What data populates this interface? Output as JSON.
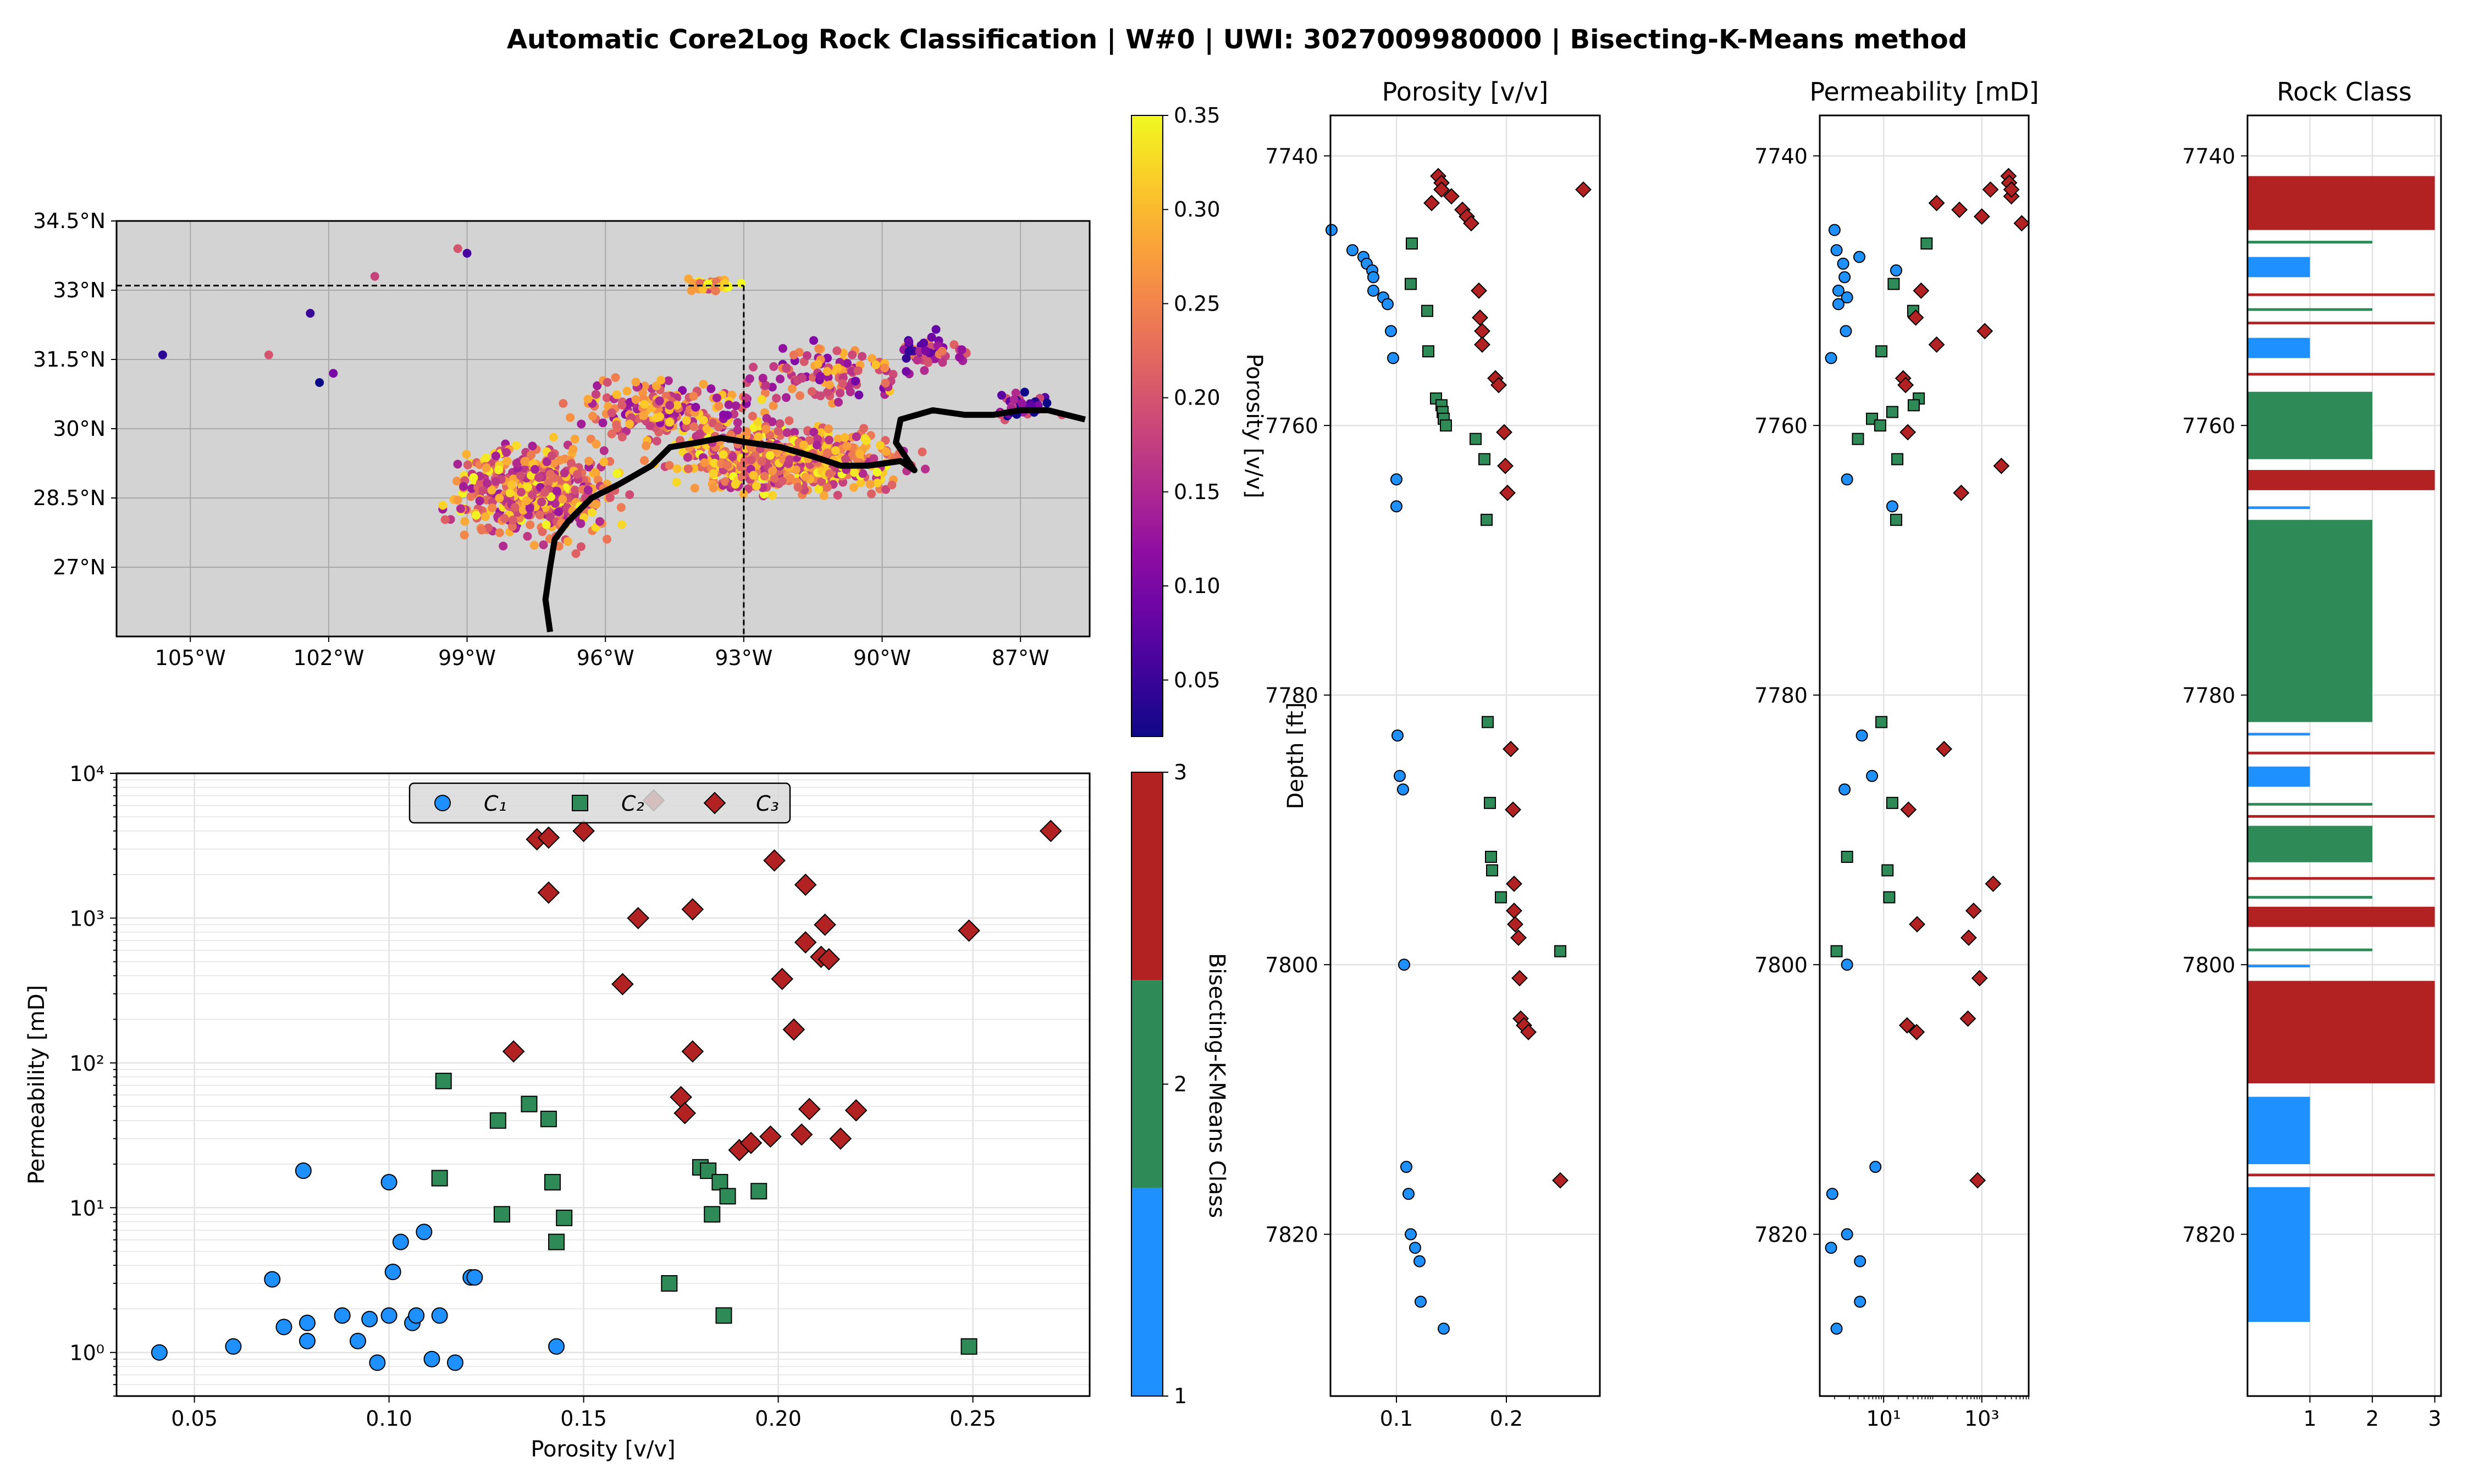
{
  "figure": {
    "title": "Automatic Core2Log Rock Classification | W#0 | UWI: 3027009980000 | Bisecting-K-Means method"
  },
  "colors": {
    "c1": "#1e90ff",
    "c2": "#2e8b57",
    "c3": "#b22222",
    "map_bg": "#d3d3d3",
    "coast": "#000000"
  },
  "chart_data": [
    {
      "id": "map",
      "type": "scatter",
      "description_of_data": "well locations colored by porosity",
      "xlabel": "",
      "ylabel": "",
      "xticks": [
        "105°W",
        "102°W",
        "99°W",
        "96°W",
        "93°W",
        "90°W",
        "87°W"
      ],
      "xtick_values": [
        -105,
        -102,
        -99,
        -96,
        -93,
        -90,
        -87
      ],
      "yticks": [
        "34.5°N",
        "33°N",
        "31.5°N",
        "30°N",
        "28.5°N",
        "27°N"
      ],
      "ytick_values": [
        34.5,
        33,
        31.5,
        30,
        28.5,
        27
      ],
      "xlim": [
        -106.6,
        -85.5
      ],
      "ylim": [
        25.5,
        34.5
      ],
      "grid": true,
      "marker_lines": {
        "lat": 33.1,
        "lon": -93.0
      },
      "colorbar": {
        "label": "Porosity [v/v]",
        "ticks": [
          "0.05",
          "0.10",
          "0.15",
          "0.20",
          "0.25",
          "0.30",
          "0.35"
        ],
        "tick_values": [
          0.05,
          0.1,
          0.15,
          0.2,
          0.25,
          0.3,
          0.35
        ],
        "range": [
          0.02,
          0.35
        ],
        "colormap": "plasma"
      }
    },
    {
      "id": "crossplot",
      "type": "scatter",
      "xlabel": "Porosity [v/v]",
      "ylabel": "Permeability [mD]",
      "xlim": [
        0.03,
        0.28
      ],
      "ylim": [
        0.5,
        10000
      ],
      "yscale": "log",
      "xticks": [
        "0.05",
        "0.10",
        "0.15",
        "0.20",
        "0.25"
      ],
      "xtick_values": [
        0.05,
        0.1,
        0.15,
        0.2,
        0.25
      ],
      "yticks": [
        "10⁰",
        "10¹",
        "10²",
        "10³",
        "10⁴"
      ],
      "ytick_values": [
        1,
        10,
        100,
        1000,
        10000
      ],
      "grid": true,
      "legend": {
        "position": "top-center",
        "entries": [
          "C₁",
          "C₂",
          "C₃"
        ]
      },
      "series": [
        {
          "name": "C₁",
          "points": [
            [
              0.041,
              1.0
            ],
            [
              0.06,
              1.1
            ],
            [
              0.07,
              3.2
            ],
            [
              0.073,
              1.5
            ],
            [
              0.078,
              18
            ],
            [
              0.079,
              1.6
            ],
            [
              0.079,
              1.2
            ],
            [
              0.088,
              1.8
            ],
            [
              0.092,
              1.2
            ],
            [
              0.095,
              1.7
            ],
            [
              0.097,
              0.85
            ],
            [
              0.1,
              1.8
            ],
            [
              0.1,
              15
            ],
            [
              0.101,
              3.6
            ],
            [
              0.103,
              5.8
            ],
            [
              0.106,
              1.6
            ],
            [
              0.107,
              1.8
            ],
            [
              0.109,
              6.8
            ],
            [
              0.111,
              0.9
            ],
            [
              0.113,
              1.8
            ],
            [
              0.117,
              0.85
            ],
            [
              0.121,
              3.3
            ],
            [
              0.122,
              3.3
            ],
            [
              0.143,
              1.1
            ]
          ]
        },
        {
          "name": "C₂",
          "points": [
            [
              0.114,
              75
            ],
            [
              0.113,
              16
            ],
            [
              0.128,
              40
            ],
            [
              0.129,
              9
            ],
            [
              0.136,
              52
            ],
            [
              0.141,
              41
            ],
            [
              0.142,
              15
            ],
            [
              0.143,
              5.8
            ],
            [
              0.145,
              8.5
            ],
            [
              0.172,
              3
            ],
            [
              0.18,
              19
            ],
            [
              0.182,
              18
            ],
            [
              0.183,
              9
            ],
            [
              0.185,
              15
            ],
            [
              0.186,
              1.8
            ],
            [
              0.187,
              12
            ],
            [
              0.195,
              13
            ],
            [
              0.249,
              1.1
            ]
          ]
        },
        {
          "name": "C₃",
          "points": [
            [
              0.138,
              3500
            ],
            [
              0.141,
              3600
            ],
            [
              0.141,
              1500
            ],
            [
              0.15,
              4000
            ],
            [
              0.132,
              120
            ],
            [
              0.16,
              350
            ],
            [
              0.164,
              1000
            ],
            [
              0.168,
              6500
            ],
            [
              0.175,
              58
            ],
            [
              0.176,
              45
            ],
            [
              0.178,
              1150
            ],
            [
              0.178,
              120
            ],
            [
              0.19,
              25
            ],
            [
              0.193,
              28
            ],
            [
              0.198,
              31
            ],
            [
              0.199,
              2500
            ],
            [
              0.201,
              380
            ],
            [
              0.204,
              170
            ],
            [
              0.206,
              32
            ],
            [
              0.207,
              1700
            ],
            [
              0.207,
              680
            ],
            [
              0.208,
              48
            ],
            [
              0.211,
              540
            ],
            [
              0.212,
              900
            ],
            [
              0.213,
              520
            ],
            [
              0.216,
              30
            ],
            [
              0.22,
              47
            ],
            [
              0.249,
              820
            ],
            [
              0.27,
              4000
            ]
          ]
        }
      ],
      "colorbar": {
        "label": "Bisecting-K-Means Class",
        "ticks": [
          "1",
          "2",
          "3"
        ],
        "tick_values": [
          1,
          2,
          3
        ]
      }
    },
    {
      "id": "porosity_track",
      "type": "scatter",
      "title": "Porosity [v/v]",
      "ylabel": "Depth [ft]",
      "xlim": [
        0.04,
        0.285
      ],
      "ylim": [
        7832,
        7737
      ],
      "xticks": [
        "0.1",
        "0.2"
      ],
      "xtick_values": [
        0.1,
        0.2
      ],
      "yticks": [
        "7740",
        "7760",
        "7780",
        "7800",
        "7820"
      ],
      "ytick_values": [
        7740,
        7760,
        7780,
        7800,
        7820
      ],
      "grid": true
    },
    {
      "id": "perm_track",
      "type": "scatter",
      "title": "Permeability [mD]",
      "xscale": "log",
      "xlim": [
        0.5,
        9000
      ],
      "ylim": [
        7832,
        7737
      ],
      "xticks": [
        "10¹",
        "10³"
      ],
      "xtick_values": [
        10,
        1000
      ],
      "yticks": [
        "7740",
        "7760",
        "7780",
        "7800",
        "7820"
      ],
      "ytick_values": [
        7740,
        7760,
        7780,
        7800,
        7820
      ],
      "grid": true
    },
    {
      "id": "class_track",
      "type": "bar",
      "title": "Rock Class",
      "xlim": [
        0,
        3.1
      ],
      "ylim": [
        7832,
        7737
      ],
      "xticks": [
        "1",
        "2",
        "3"
      ],
      "xtick_values": [
        1,
        2,
        3
      ],
      "yticks": [
        "7740",
        "7760",
        "7780",
        "7800",
        "7820"
      ],
      "ytick_values": [
        7740,
        7760,
        7780,
        7800,
        7820
      ],
      "grid": true,
      "intervals": [
        [
          7741.5,
          7745.5,
          3
        ],
        [
          7746.3,
          7746.5,
          2
        ],
        [
          7747.5,
          7749,
          1
        ],
        [
          7750.2,
          7750.4,
          3
        ],
        [
          7751.3,
          7751.5,
          2
        ],
        [
          7752.3,
          7752.5,
          3
        ],
        [
          7753.5,
          7755,
          1
        ],
        [
          7756.1,
          7756.3,
          3
        ],
        [
          7757.5,
          7762.5,
          2
        ],
        [
          7763.3,
          7764.8,
          3
        ],
        [
          7766,
          7766.2,
          1
        ],
        [
          7767,
          7782,
          2
        ],
        [
          7782.8,
          7783,
          1
        ],
        [
          7784.2,
          7784.4,
          3
        ],
        [
          7785.3,
          7786.8,
          1
        ],
        [
          7788,
          7788.2,
          2
        ],
        [
          7788.9,
          7789.1,
          3
        ],
        [
          7789.7,
          7792.4,
          2
        ],
        [
          7793.5,
          7793.7,
          3
        ],
        [
          7794.9,
          7795.1,
          2
        ],
        [
          7795.7,
          7797.2,
          3
        ],
        [
          7798.8,
          7799,
          2
        ],
        [
          7800,
          7800.2,
          1
        ],
        [
          7801.2,
          7808.8,
          3
        ],
        [
          7809.8,
          7814.8,
          1
        ],
        [
          7815.5,
          7815.7,
          3
        ],
        [
          7816.5,
          7826.5,
          1
        ]
      ]
    }
  ]
}
